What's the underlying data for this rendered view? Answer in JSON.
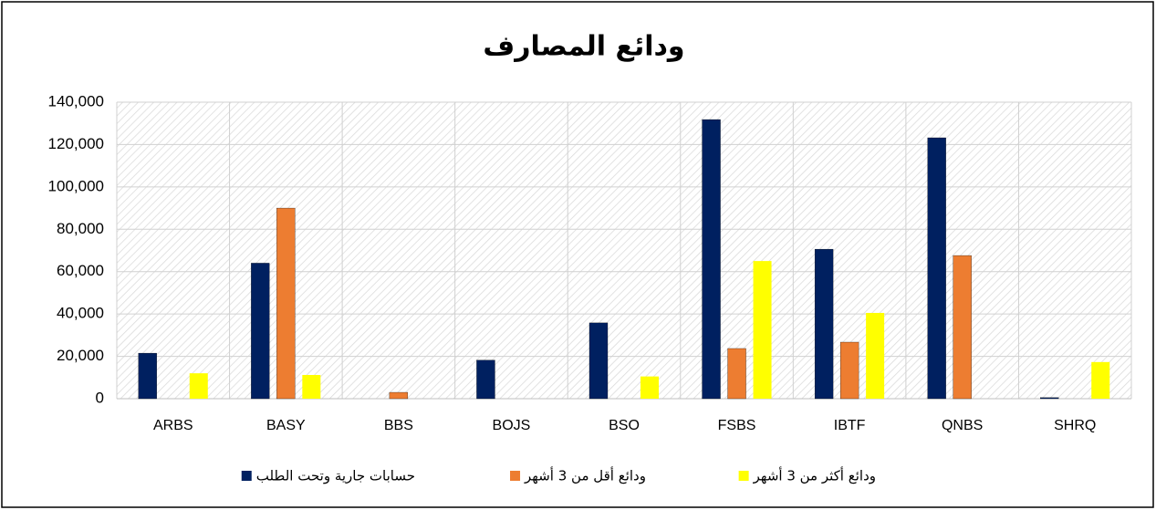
{
  "chart_data": {
    "type": "bar",
    "title": "ودائع المصارف",
    "categories": [
      "ARBS",
      "BASY",
      "BBS",
      "BOJS",
      "BSO",
      "FSBS",
      "IBTF",
      "QNBS",
      "SHRQ"
    ],
    "series": [
      {
        "name": "حسابات جارية وتحت الطلب",
        "color": "#002060",
        "values": [
          21500,
          64000,
          0,
          18200,
          35800,
          131800,
          70600,
          123200,
          500
        ]
      },
      {
        "name": "ودائع أقل من 3 أشهر",
        "color": "#ed7d31",
        "values": [
          0,
          90000,
          3000,
          0,
          0,
          23700,
          26700,
          67600,
          0
        ]
      },
      {
        "name": "ودائع أكثر من 3 أشهر",
        "color": "#ffff00",
        "values": [
          12000,
          11200,
          0,
          0,
          10500,
          65000,
          40500,
          0,
          17300
        ]
      }
    ],
    "ylim": [
      0,
      140000
    ],
    "yticks": [
      0,
      {
        "value": 20000,
        "label": "20,000"
      },
      {
        "value": 40000,
        "label": "40,000"
      },
      {
        "value": 60000,
        "label": "60,000"
      },
      {
        "value": 80000,
        "label": "80,000"
      },
      {
        "value": 100000,
        "label": "100,000"
      },
      {
        "value": 120000,
        "label": "120,000"
      },
      {
        "value": 140000,
        "label": "140,000"
      }
    ],
    "grid": true,
    "legend": "bottom"
  }
}
